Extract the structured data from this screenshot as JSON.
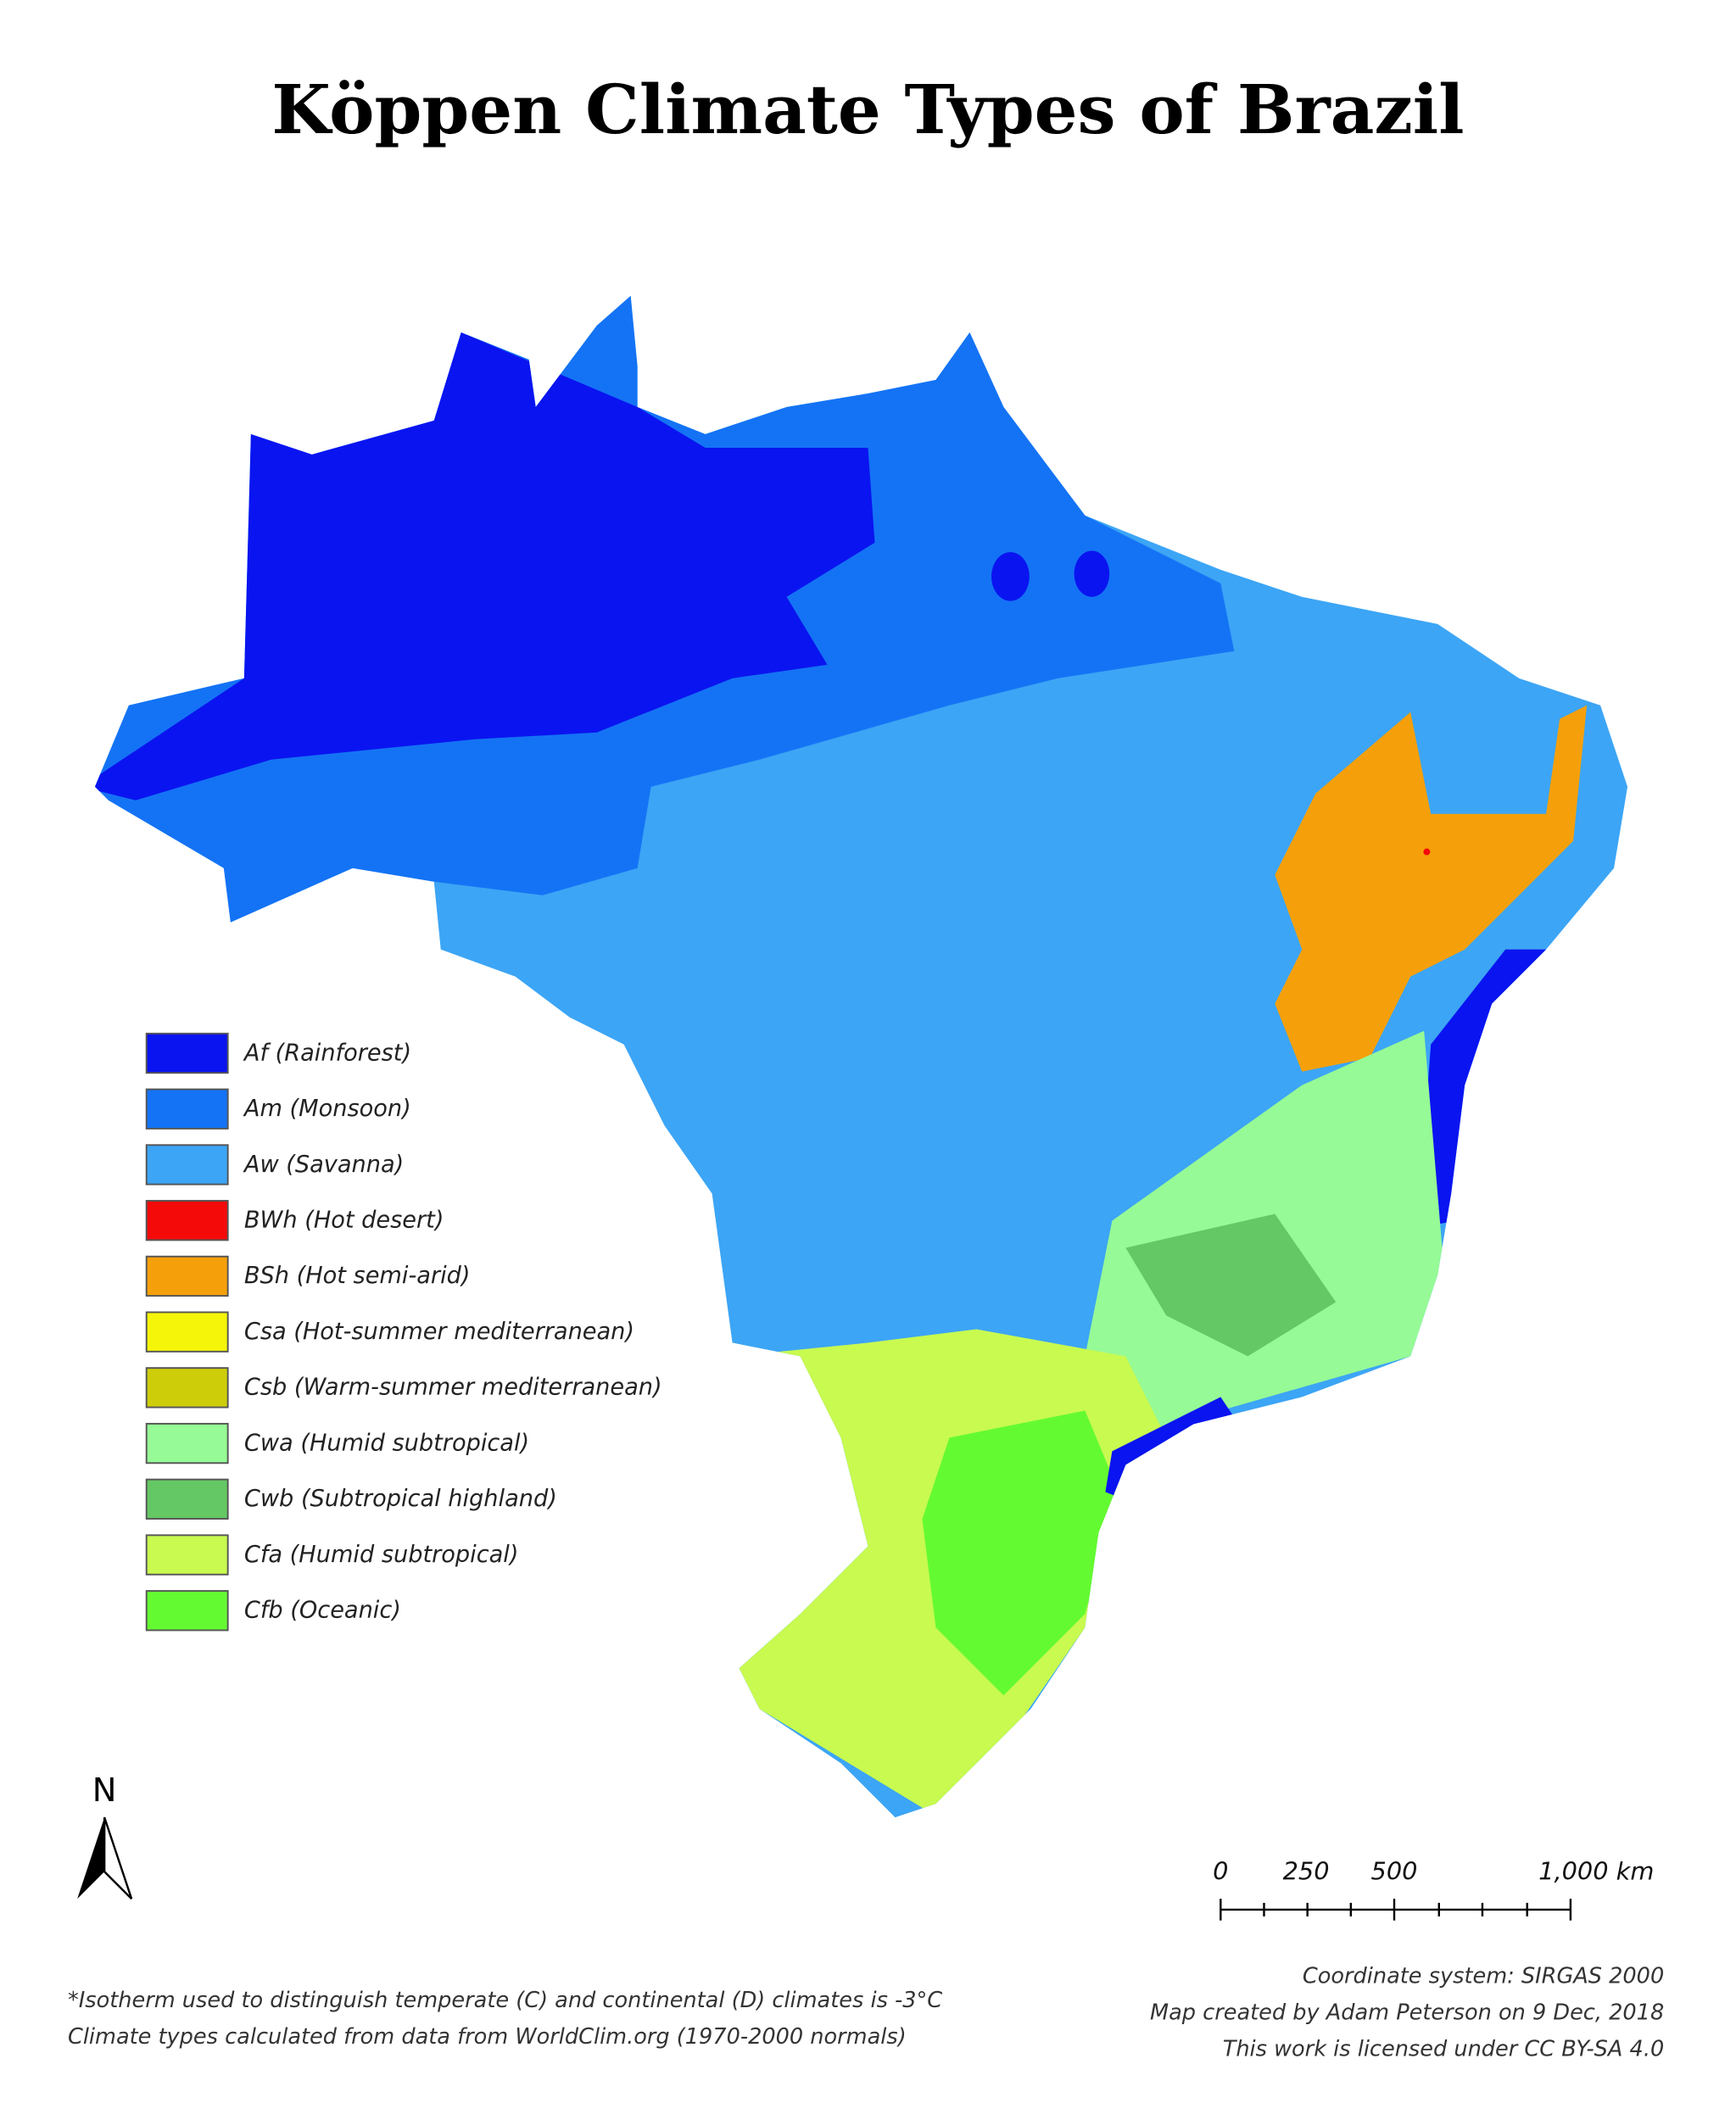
{
  "title": "Köppen Climate Types of Brazil",
  "legend": [
    {
      "label": "Af (Rainforest)",
      "color": "#0a14f0"
    },
    {
      "label": "Am (Monsoon)",
      "color": "#1473f5"
    },
    {
      "label": "Aw (Savanna)",
      "color": "#3ca5f5"
    },
    {
      "label": "BWh (Hot desert)",
      "color": "#f50a0a"
    },
    {
      "label": "BSh (Hot semi-arid)",
      "color": "#f5a00a"
    },
    {
      "label": "Csa (Hot-summer mediterranean)",
      "color": "#f5f50a"
    },
    {
      "label": "Csb (Warm-summer mediterranean)",
      "color": "#cdcd0a"
    },
    {
      "label": "Cwa (Humid subtropical)",
      "color": "#96fa96"
    },
    {
      "label": "Cwb (Subtropical highland)",
      "color": "#64c864"
    },
    {
      "label": "Cfa (Humid subtropical)",
      "color": "#c8fa50"
    },
    {
      "label": "Cfb (Oceanic)",
      "color": "#64fa32"
    }
  ],
  "north_label": "N",
  "scale_bar": {
    "labels": [
      "0",
      "250",
      "500",
      "1,000 km"
    ]
  },
  "notes": [
    "*Isotherm used to distinguish temperate (C) and continental (D) climates is -3°C",
    "Climate types calculated from data from WorldClim.org (1970-2000 normals)"
  ],
  "credits": [
    "Coordinate system: SIRGAS 2000",
    "Map created by Adam Peterson on 9 Dec, 2018",
    "This work is licensed under CC BY-SA 4.0"
  ]
}
